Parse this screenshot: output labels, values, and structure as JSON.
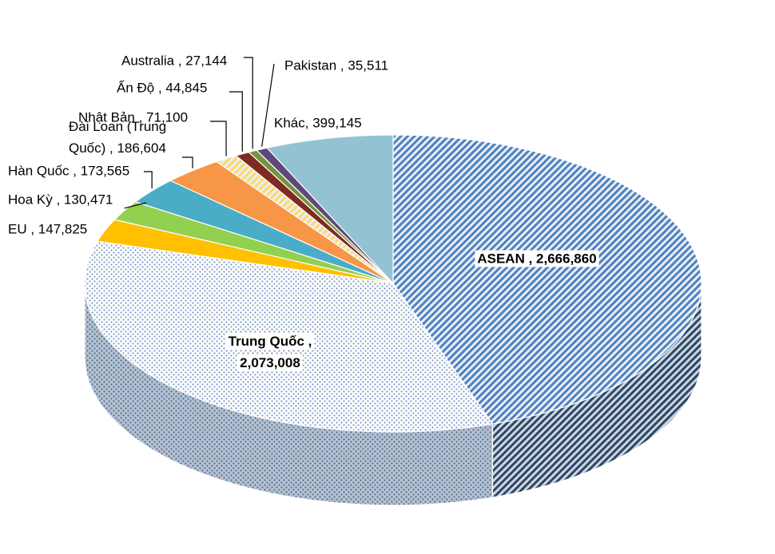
{
  "chart_data": {
    "type": "pie",
    "three_d": true,
    "title": "",
    "slices": [
      {
        "label": "ASEAN",
        "value": 2666860,
        "display": "ASEAN , 2,666,860",
        "color": "#4f81bd",
        "pattern": "diagonal-hatch"
      },
      {
        "label": "Trung Quốc",
        "value": 2073008,
        "display": "Trung Quốc , 2,073,008",
        "color": "#c6d6ea",
        "pattern": "dotted"
      },
      {
        "label": "EU",
        "value": 147825,
        "display": "EU , 147,825",
        "color": "#ffc000"
      },
      {
        "label": "Hoa Kỳ",
        "value": 130471,
        "display": "Hoa Kỳ , 130,471",
        "color": "#92d050"
      },
      {
        "label": "Hàn Quốc",
        "value": 173565,
        "display": "Hàn Quốc , 173,565",
        "color": "#4bacc6"
      },
      {
        "label": "Đài Loan (Trung Quốc)",
        "value": 186604,
        "display": "Đài Loan (Trung Quốc) , 186,604",
        "color": "#f79646"
      },
      {
        "label": "Nhật Bản",
        "value": 71100,
        "display": "Nhật Bản , 71,100",
        "color": "#ffd966",
        "pattern": "diagonal-hatch"
      },
      {
        "label": "Ấn Độ",
        "value": 44845,
        "display": "Ấn Độ , 44,845",
        "color": "#7f2a22"
      },
      {
        "label": "Australia",
        "value": 27144,
        "display": "Australia , 27,144",
        "color": "#77933c"
      },
      {
        "label": "Pakistan",
        "value": 35511,
        "display": "Pakistan , 35,511",
        "color": "#5f497a"
      },
      {
        "label": "Khác",
        "value": 399145,
        "display": "Khác, 399,145",
        "color": "#93c3d3"
      }
    ],
    "data_labels": [
      {
        "slice": "ASEAN",
        "lines": [
          "ASEAN , 2,666,860"
        ],
        "bold": true
      },
      {
        "slice": "Trung Quốc",
        "lines": [
          "Trung Quốc ,",
          "2,073,008"
        ],
        "bold": true
      },
      {
        "slice": "EU",
        "lines": [
          "EU , 147,825"
        ]
      },
      {
        "slice": "Hoa Kỳ",
        "lines": [
          "Hoa Kỳ , 130,471"
        ]
      },
      {
        "slice": "Hàn Quốc",
        "lines": [
          "Hàn Quốc , 173,565"
        ]
      },
      {
        "slice": "Đài Loan (Trung Quốc)",
        "lines": [
          "Đài Loan (Trung",
          "Quốc) , 186,604"
        ]
      },
      {
        "slice": "Nhật Bản",
        "lines": [
          "Nhật Bản , 71,100"
        ]
      },
      {
        "slice": "Ấn Độ",
        "lines": [
          "Ấn Độ , 44,845"
        ]
      },
      {
        "slice": "Australia",
        "lines": [
          "Australia , 27,144"
        ]
      },
      {
        "slice": "Pakistan",
        "lines": [
          "Pakistan , 35,511"
        ]
      },
      {
        "slice": "Khác",
        "lines": [
          "Khác, 399,145"
        ]
      }
    ],
    "legend": "none"
  }
}
